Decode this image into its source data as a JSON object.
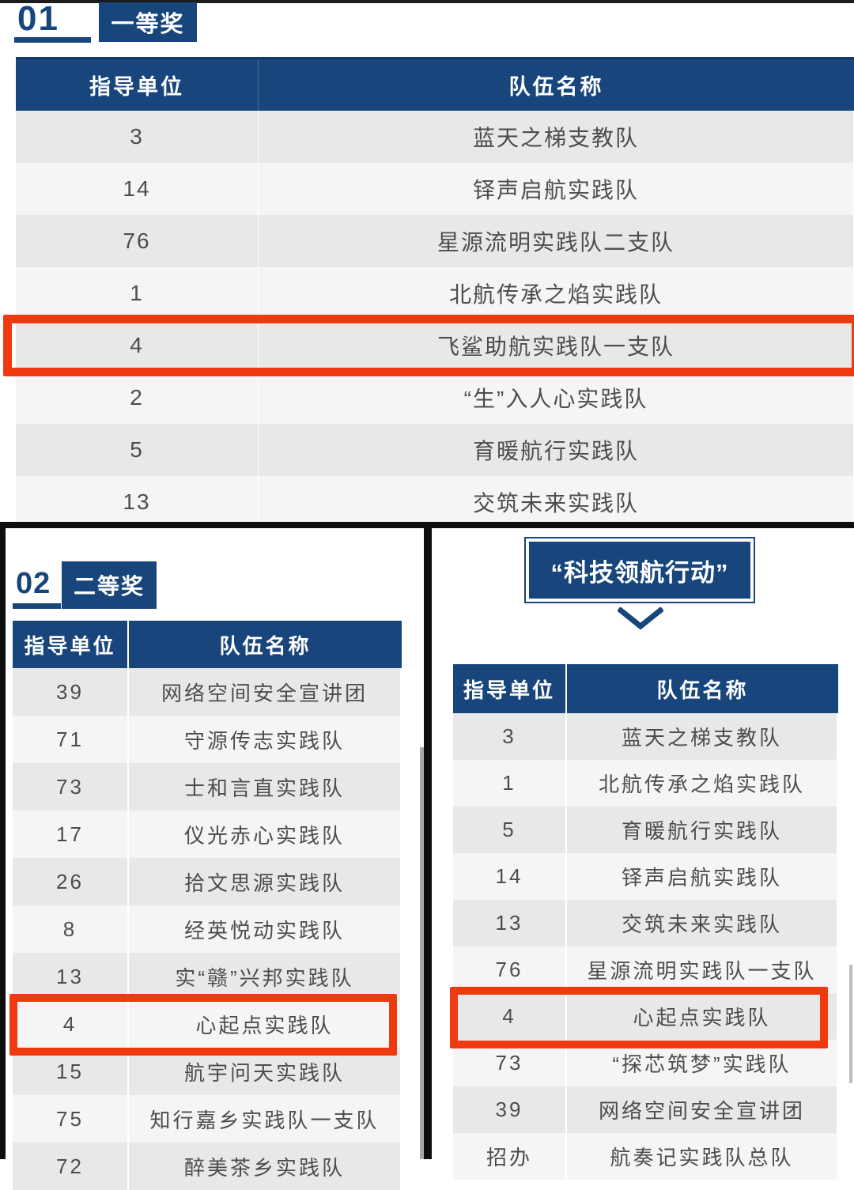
{
  "colors": {
    "navy": "#17457c",
    "highlight_red": "#ee3a0e",
    "row_odd": "#e8e8e8",
    "row_even": "#f5f5f5",
    "cell_text": "#4d4d4d",
    "frame_black": "#0e0e0e"
  },
  "sections": {
    "first_prize": {
      "number": "01",
      "badge": "一等奖",
      "table": {
        "headers": [
          "指导单位",
          "队伍名称"
        ],
        "rows": [
          [
            "3",
            "蓝天之梯支教队"
          ],
          [
            "14",
            "铎声启航实践队"
          ],
          [
            "76",
            "星源流明实践队二支队"
          ],
          [
            "1",
            "北航传承之焰实践队"
          ],
          [
            "4",
            "飞鲨助航实践队一支队"
          ],
          [
            "2",
            "“生”入人心实践队"
          ],
          [
            "5",
            "育暖航行实践队"
          ],
          [
            "13",
            "交筑未来实践队"
          ]
        ],
        "highlighted_row": 4,
        "highlighted_team": "飞鲨助航实践队一支队"
      }
    },
    "second_prize": {
      "number": "02",
      "badge": "二等奖",
      "table": {
        "headers": [
          "指导单位",
          "队伍名称"
        ],
        "rows": [
          [
            "39",
            "网络空间安全宣讲团"
          ],
          [
            "71",
            "守源传志实践队"
          ],
          [
            "73",
            "士和言直实践队"
          ],
          [
            "17",
            "仪光赤心实践队"
          ],
          [
            "26",
            "拾文思源实践队"
          ],
          [
            "8",
            "经英悦动实践队"
          ],
          [
            "13",
            "实“赣”兴邦实践队"
          ],
          [
            "4",
            "心起点实践队"
          ],
          [
            "15",
            "航宇问天实践队"
          ],
          [
            "75",
            "知行嘉乡实践队一支队"
          ],
          [
            "72",
            "醉美茶乡实践队"
          ]
        ],
        "highlighted_row": 7,
        "highlighted_team": "心起点实践队"
      }
    },
    "tech_pilot": {
      "badge": "“科技领航行动”",
      "table": {
        "headers": [
          "指导单位",
          "队伍名称"
        ],
        "rows": [
          [
            "3",
            "蓝天之梯支教队"
          ],
          [
            "1",
            "北航传承之焰实践队"
          ],
          [
            "5",
            "育暖航行实践队"
          ],
          [
            "14",
            "铎声启航实践队"
          ],
          [
            "13",
            "交筑未来实践队"
          ],
          [
            "76",
            "星源流明实践队一支队"
          ],
          [
            "4",
            "心起点实践队"
          ],
          [
            "73",
            "“探芯筑梦”实践队"
          ],
          [
            "39",
            "网络空间安全宣讲团"
          ],
          [
            "招办",
            "航奏记实践队总队"
          ]
        ],
        "highlighted_row": 6,
        "highlighted_team": "心起点实践队"
      }
    }
  }
}
